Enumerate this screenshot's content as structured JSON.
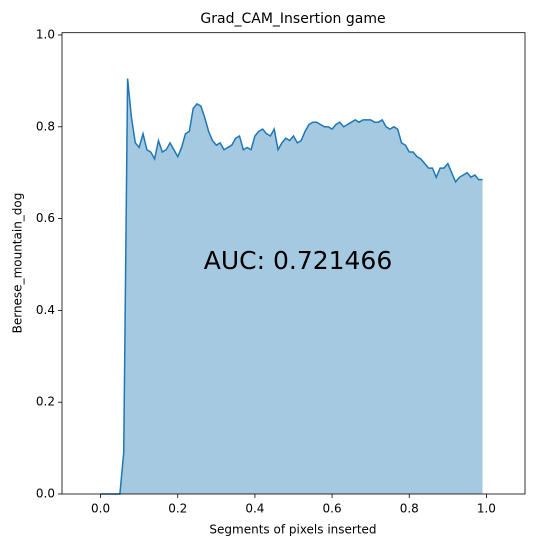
{
  "chart_data": {
    "type": "line",
    "title": "Grad_CAM_Insertion game",
    "xlabel": "Segments of pixels inserted",
    "ylabel": "Bernese_mountain_dog",
    "annotation": "AUC: 0.721466",
    "x": [
      0,
      0.01,
      0.02,
      0.03,
      0.04,
      0.05,
      0.06,
      0.07,
      0.08,
      0.09,
      0.1,
      0.11,
      0.12,
      0.13,
      0.14,
      0.15,
      0.16,
      0.17,
      0.18,
      0.19,
      0.2,
      0.21,
      0.22,
      0.23,
      0.24,
      0.25,
      0.26,
      0.27,
      0.28,
      0.29,
      0.3,
      0.31,
      0.32,
      0.33,
      0.34,
      0.35,
      0.36,
      0.37,
      0.38,
      0.39,
      0.4,
      0.41,
      0.42,
      0.43,
      0.44,
      0.45,
      0.46,
      0.47,
      0.48,
      0.49,
      0.5,
      0.51,
      0.52,
      0.53,
      0.54,
      0.55,
      0.56,
      0.57,
      0.58,
      0.59,
      0.6,
      0.61,
      0.62,
      0.63,
      0.64,
      0.65,
      0.66,
      0.67,
      0.68,
      0.69,
      0.7,
      0.71,
      0.72,
      0.73,
      0.74,
      0.75,
      0.76,
      0.77,
      0.78,
      0.79,
      0.8,
      0.81,
      0.82,
      0.83,
      0.84,
      0.85,
      0.86,
      0.87,
      0.88,
      0.89,
      0.9,
      0.91,
      0.92,
      0.93,
      0.94,
      0.95,
      0.96,
      0.97,
      0.98,
      0.99
    ],
    "series": [
      {
        "color": "#1f77b4",
        "fill_alpha": 0.4,
        "values": [
          0,
          0,
          0,
          0,
          0,
          0,
          0.09,
          0.905,
          0.82,
          0.765,
          0.755,
          0.785,
          0.75,
          0.745,
          0.73,
          0.77,
          0.745,
          0.75,
          0.765,
          0.75,
          0.735,
          0.755,
          0.785,
          0.79,
          0.84,
          0.85,
          0.845,
          0.82,
          0.79,
          0.77,
          0.76,
          0.765,
          0.75,
          0.755,
          0.76,
          0.775,
          0.78,
          0.75,
          0.755,
          0.75,
          0.78,
          0.79,
          0.795,
          0.785,
          0.78,
          0.795,
          0.75,
          0.765,
          0.775,
          0.77,
          0.78,
          0.765,
          0.77,
          0.79,
          0.805,
          0.81,
          0.81,
          0.805,
          0.8,
          0.8,
          0.795,
          0.805,
          0.81,
          0.8,
          0.805,
          0.81,
          0.815,
          0.81,
          0.815,
          0.815,
          0.815,
          0.81,
          0.81,
          0.815,
          0.8,
          0.795,
          0.8,
          0.795,
          0.765,
          0.76,
          0.745,
          0.745,
          0.735,
          0.73,
          0.72,
          0.71,
          0.71,
          0.69,
          0.71,
          0.71,
          0.72,
          0.7,
          0.68,
          0.69,
          0.695,
          0.7,
          0.69,
          0.695,
          0.685,
          0.685
        ]
      }
    ],
    "xlim": [
      -0.1,
      1.1
    ],
    "ylim": [
      0,
      1.005
    ],
    "xticks": [
      {
        "value": 0,
        "label": "0.0"
      },
      {
        "value": 0.2,
        "label": "0.2"
      },
      {
        "value": 0.4,
        "label": "0.4"
      },
      {
        "value": 0.6,
        "label": "0.6"
      },
      {
        "value": 0.8,
        "label": "0.8"
      },
      {
        "value": 1,
        "label": "1.0"
      }
    ],
    "yticks": [
      {
        "value": 0,
        "label": "0.0"
      },
      {
        "value": 0.2,
        "label": "0.2"
      },
      {
        "value": 0.4,
        "label": "0.4"
      },
      {
        "value": 0.6,
        "label": "0.6"
      },
      {
        "value": 0.8,
        "label": "0.8"
      },
      {
        "value": 1,
        "label": "1.0"
      }
    ]
  }
}
